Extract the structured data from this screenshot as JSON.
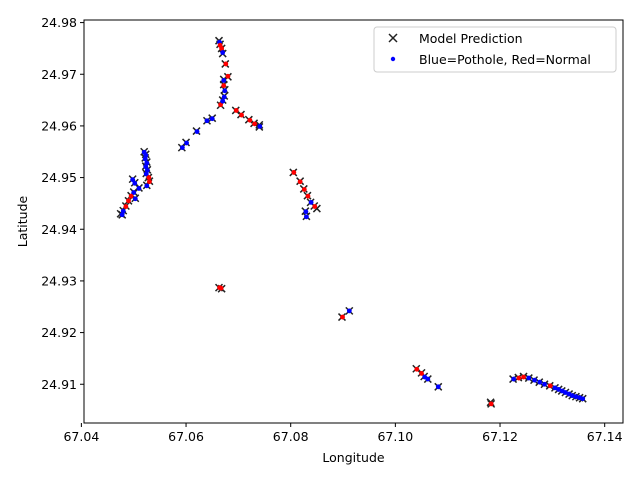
{
  "chart_data": {
    "type": "scatter",
    "title": "",
    "xlabel": "Longitude",
    "ylabel": "Latitude",
    "xlim": [
      67.0405,
      67.1435
    ],
    "ylim": [
      24.9025,
      24.9805
    ],
    "xticks": [
      "67.04",
      "67.06",
      "67.08",
      "67.10",
      "67.12",
      "67.14"
    ],
    "yticks": [
      "24.91",
      "24.92",
      "24.93",
      "24.94",
      "24.95",
      "24.96",
      "24.97",
      "24.98"
    ],
    "legend": {
      "placement": "top-right",
      "entries": [
        "Model Prediction",
        "Blue=Pothole, Red=Normal"
      ]
    },
    "colors": {
      "pothole": "#0000ff",
      "normal": "#ff0000",
      "prediction_marker": "#222222"
    },
    "series": [
      {
        "name": "Model Prediction",
        "marker": "x",
        "points": [
          [
            67.0663,
            24.9765
          ],
          [
            67.0665,
            24.9758
          ],
          [
            67.0668,
            24.975
          ],
          [
            67.067,
            24.974
          ],
          [
            67.0675,
            24.972
          ],
          [
            67.068,
            24.9695
          ],
          [
            67.0672,
            24.969
          ],
          [
            67.0672,
            24.968
          ],
          [
            67.0674,
            24.967
          ],
          [
            67.0673,
            24.9658
          ],
          [
            67.0666,
            24.964
          ],
          [
            67.067,
            24.965
          ],
          [
            67.0695,
            24.963
          ],
          [
            67.0705,
            24.9622
          ],
          [
            67.072,
            24.9612
          ],
          [
            67.073,
            24.9605
          ],
          [
            67.074,
            24.9598
          ],
          [
            67.074,
            24.9602
          ],
          [
            67.065,
            24.9615
          ],
          [
            67.064,
            24.961
          ],
          [
            67.062,
            24.959
          ],
          [
            67.06,
            24.9568
          ],
          [
            67.0592,
            24.9558
          ],
          [
            67.052,
            24.955
          ],
          [
            67.0523,
            24.9545
          ],
          [
            67.0522,
            24.9538
          ],
          [
            67.0525,
            24.953
          ],
          [
            67.0523,
            24.9522
          ],
          [
            67.0526,
            24.9515
          ],
          [
            67.0524,
            24.9508
          ],
          [
            67.0528,
            24.95
          ],
          [
            67.053,
            24.9493
          ],
          [
            67.0525,
            24.9485
          ],
          [
            67.051,
            24.948
          ],
          [
            67.05,
            24.9472
          ],
          [
            67.0502,
            24.949
          ],
          [
            67.0498,
            24.9497
          ],
          [
            67.0495,
            24.9465
          ],
          [
            67.049,
            24.9455
          ],
          [
            67.0485,
            24.9445
          ],
          [
            67.048,
            24.9436
          ],
          [
            67.0478,
            24.9428
          ],
          [
            67.0475,
            24.943
          ],
          [
            67.0503,
            24.946
          ],
          [
            67.0805,
            24.951
          ],
          [
            67.0818,
            24.9493
          ],
          [
            67.0825,
            24.9478
          ],
          [
            67.0832,
            24.9465
          ],
          [
            67.0838,
            24.9452
          ],
          [
            67.0845,
            24.9445
          ],
          [
            67.085,
            24.944
          ],
          [
            67.0828,
            24.9435
          ],
          [
            67.083,
            24.9425
          ],
          [
            67.0663,
            24.9287
          ],
          [
            67.0668,
            24.9285
          ],
          [
            67.0898,
            24.923
          ],
          [
            67.0912,
            24.9242
          ],
          [
            67.104,
            24.913
          ],
          [
            67.105,
            24.9122
          ],
          [
            67.1055,
            24.9115
          ],
          [
            67.1062,
            24.911
          ],
          [
            67.1082,
            24.9095
          ],
          [
            67.1183,
            24.9062
          ],
          [
            67.1182,
            24.9065
          ],
          [
            67.1225,
            24.911
          ],
          [
            67.1235,
            24.9113
          ],
          [
            67.1245,
            24.9115
          ],
          [
            67.1255,
            24.9112
          ],
          [
            67.1265,
            24.9108
          ],
          [
            67.1275,
            24.9104
          ],
          [
            67.1285,
            24.91
          ],
          [
            67.1295,
            24.9097
          ],
          [
            67.1305,
            24.9093
          ],
          [
            67.1312,
            24.909
          ],
          [
            67.1318,
            24.9087
          ],
          [
            67.1325,
            24.9084
          ],
          [
            67.1332,
            24.9081
          ],
          [
            67.1338,
            24.9078
          ],
          [
            67.1345,
            24.9076
          ],
          [
            67.1352,
            24.9074
          ],
          [
            67.1358,
            24.9072
          ]
        ]
      },
      {
        "name": "Blue=Pothole, Red=Normal",
        "marker": "dot",
        "points": [
          [
            67.0664,
            24.9762,
            "pothole"
          ],
          [
            67.0665,
            24.9756,
            "normal"
          ],
          [
            67.0668,
            24.975,
            "normal"
          ],
          [
            67.067,
            24.9742,
            "pothole"
          ],
          [
            67.0676,
            24.972,
            "normal"
          ],
          [
            67.068,
            24.9696,
            "normal"
          ],
          [
            67.0672,
            24.9688,
            "pothole"
          ],
          [
            67.0672,
            24.9678,
            "normal"
          ],
          [
            67.0674,
            24.9668,
            "pothole"
          ],
          [
            67.0673,
            24.9656,
            "pothole"
          ],
          [
            67.0666,
            24.9641,
            "normal"
          ],
          [
            67.067,
            24.9648,
            "pothole"
          ],
          [
            67.0696,
            24.963,
            "normal"
          ],
          [
            67.0706,
            24.9621,
            "normal"
          ],
          [
            67.0722,
            24.9611,
            "normal"
          ],
          [
            67.0731,
            24.9604,
            "normal"
          ],
          [
            67.0741,
            24.9599,
            "pothole"
          ],
          [
            67.065,
            24.9614,
            "pothole"
          ],
          [
            67.064,
            24.961,
            "pothole"
          ],
          [
            67.0621,
            24.9589,
            "pothole"
          ],
          [
            67.0601,
            24.9567,
            "pothole"
          ],
          [
            67.0593,
            24.9558,
            "pothole"
          ],
          [
            67.052,
            24.9549,
            "pothole"
          ],
          [
            67.0523,
            24.9543,
            "pothole"
          ],
          [
            67.0522,
            24.9536,
            "pothole"
          ],
          [
            67.0525,
            24.9528,
            "pothole"
          ],
          [
            67.0523,
            24.9521,
            "pothole"
          ],
          [
            67.0526,
            24.9514,
            "pothole"
          ],
          [
            67.0524,
            24.9507,
            "pothole"
          ],
          [
            67.0529,
            24.95,
            "normal"
          ],
          [
            67.053,
            24.9492,
            "normal"
          ],
          [
            67.0525,
            24.9484,
            "pothole"
          ],
          [
            67.051,
            24.9479,
            "pothole"
          ],
          [
            67.05,
            24.9471,
            "pothole"
          ],
          [
            67.0502,
            24.9489,
            "pothole"
          ],
          [
            67.0498,
            24.9496,
            "pothole"
          ],
          [
            67.0495,
            24.9464,
            "normal"
          ],
          [
            67.049,
            24.9455,
            "normal"
          ],
          [
            67.0485,
            24.9444,
            "normal"
          ],
          [
            67.048,
            24.9435,
            "pothole"
          ],
          [
            67.0478,
            24.9428,
            "pothole"
          ],
          [
            67.0503,
            24.9459,
            "pothole"
          ],
          [
            67.0806,
            24.951,
            "normal"
          ],
          [
            67.0818,
            24.9492,
            "normal"
          ],
          [
            67.0826,
            24.9477,
            "normal"
          ],
          [
            67.0833,
            24.9464,
            "normal"
          ],
          [
            67.0839,
            24.9452,
            "pothole"
          ],
          [
            67.0846,
            24.9444,
            "normal"
          ],
          [
            67.0829,
            24.9434,
            "pothole"
          ],
          [
            67.083,
            24.9424,
            "pothole"
          ],
          [
            67.0664,
            24.9287,
            "normal"
          ],
          [
            67.0667,
            24.9286,
            "normal"
          ],
          [
            67.0899,
            24.923,
            "normal"
          ],
          [
            67.0912,
            24.9242,
            "pothole"
          ],
          [
            67.1041,
            24.9129,
            "normal"
          ],
          [
            67.105,
            24.9121,
            "normal"
          ],
          [
            67.1056,
            24.9114,
            "pothole"
          ],
          [
            67.1062,
            24.911,
            "pothole"
          ],
          [
            67.1082,
            24.9095,
            "pothole"
          ],
          [
            67.1183,
            24.9062,
            "normal"
          ],
          [
            67.1226,
            24.911,
            "pothole"
          ],
          [
            67.1236,
            24.9112,
            "normal"
          ],
          [
            67.1245,
            24.9114,
            "normal"
          ],
          [
            67.1255,
            24.9112,
            "pothole"
          ],
          [
            67.1266,
            24.9108,
            "pothole"
          ],
          [
            67.1276,
            24.9104,
            "pothole"
          ],
          [
            67.1285,
            24.91,
            "pothole"
          ],
          [
            67.1296,
            24.9097,
            "normal"
          ],
          [
            67.1305,
            24.9093,
            "pothole"
          ],
          [
            67.1312,
            24.909,
            "pothole"
          ],
          [
            67.1319,
            24.9087,
            "pothole"
          ],
          [
            67.1325,
            24.9084,
            "pothole"
          ],
          [
            67.1332,
            24.9081,
            "pothole"
          ],
          [
            67.1338,
            24.9078,
            "pothole"
          ],
          [
            67.1345,
            24.9076,
            "pothole"
          ],
          [
            67.1352,
            24.9074,
            "pothole"
          ],
          [
            67.1358,
            24.9072,
            "pothole"
          ]
        ]
      }
    ]
  }
}
